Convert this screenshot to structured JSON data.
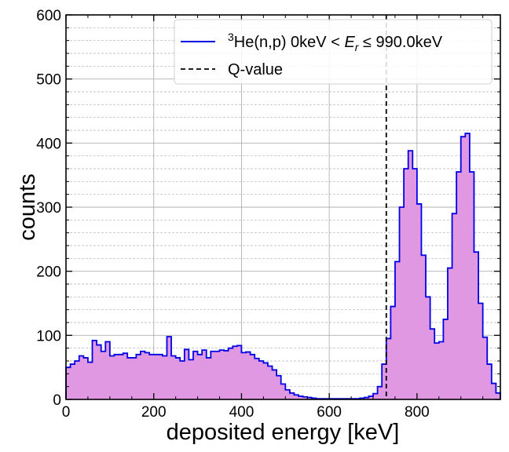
{
  "chart_data": {
    "type": "histogram",
    "xlabel": "deposited energy [keV]",
    "ylabel": "counts",
    "xlim": [
      0,
      990
    ],
    "ylim": [
      0,
      600
    ],
    "xticks": [
      0,
      200,
      400,
      600,
      800
    ],
    "yticks": [
      0,
      100,
      200,
      300,
      400,
      500,
      600
    ],
    "grid": true,
    "legend_placement": "top-right",
    "bin_width": 10,
    "counts": [
      50,
      55,
      60,
      68,
      65,
      58,
      92,
      85,
      75,
      90,
      68,
      70,
      70,
      72,
      65,
      65,
      70,
      75,
      73,
      70,
      70,
      70,
      68,
      98,
      68,
      65,
      60,
      78,
      62,
      75,
      70,
      77,
      65,
      75,
      75,
      77,
      76,
      80,
      83,
      84,
      73,
      74,
      70,
      64,
      60,
      57,
      52,
      46,
      37,
      24,
      15,
      10,
      7,
      5,
      4,
      3,
      2,
      1,
      1,
      1,
      1,
      1,
      1,
      1,
      1,
      1,
      1,
      2,
      3,
      5,
      9,
      20,
      55,
      95,
      145,
      215,
      300,
      360,
      388,
      360,
      305,
      225,
      160,
      110,
      88,
      90,
      125,
      205,
      290,
      355,
      410,
      415,
      355,
      230,
      150,
      97,
      55,
      25,
      10
    ],
    "hist_color": "#0000e6",
    "fill_color": "#e098e2",
    "q_value": 730,
    "legend": [
      {
        "label": "He(n,p) 0keV",
        "superscript": "3",
        "math": "E",
        "math_sub": "r",
        "suffix": "990.0keV",
        "style": "solid",
        "color": "#0000e6"
      },
      {
        "label": "Q-value",
        "style": "dashed",
        "color": "#000000"
      }
    ]
  }
}
